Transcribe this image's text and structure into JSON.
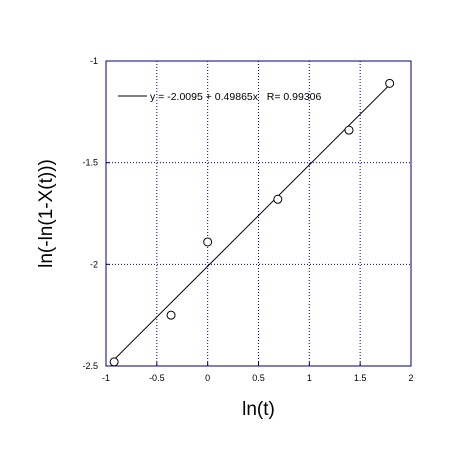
{
  "chart_data": {
    "type": "scatter",
    "title": "",
    "xlabel": "ln(t)",
    "ylabel": "ln(-ln(1-X(t)))",
    "xlim": [
      -1,
      2
    ],
    "ylim": [
      -2.5,
      -1
    ],
    "xticks": [
      -1,
      -0.5,
      0,
      0.5,
      1,
      1.5,
      2
    ],
    "yticks": [
      -1,
      -1.5,
      -2,
      -2.5
    ],
    "xtick_labels": [
      "-1",
      "-0.5",
      "0",
      "0.5",
      "1",
      "1.5",
      "2"
    ],
    "ytick_labels": [
      "-1",
      "-1.5",
      "-2",
      "-2.5"
    ],
    "grid": true,
    "series": [
      {
        "marker": "open-circle",
        "x": [
          -0.92,
          -0.36,
          0.0,
          0.69,
          1.39,
          1.79
        ],
        "y": [
          -2.48,
          -2.25,
          -1.89,
          -1.68,
          -1.34,
          -1.11
        ]
      }
    ],
    "fit_line": {
      "intercept": -2.0095,
      "slope": 0.49865,
      "x_range": [
        -0.95,
        1.78
      ]
    },
    "legend": {
      "position": "top-left",
      "text": "y = -2.0095 + 0.49865x   R= 0.99306"
    },
    "colors": {
      "frame": "#000080",
      "grid": "#0000cc",
      "line": "#000000",
      "marker": "#000000"
    }
  }
}
